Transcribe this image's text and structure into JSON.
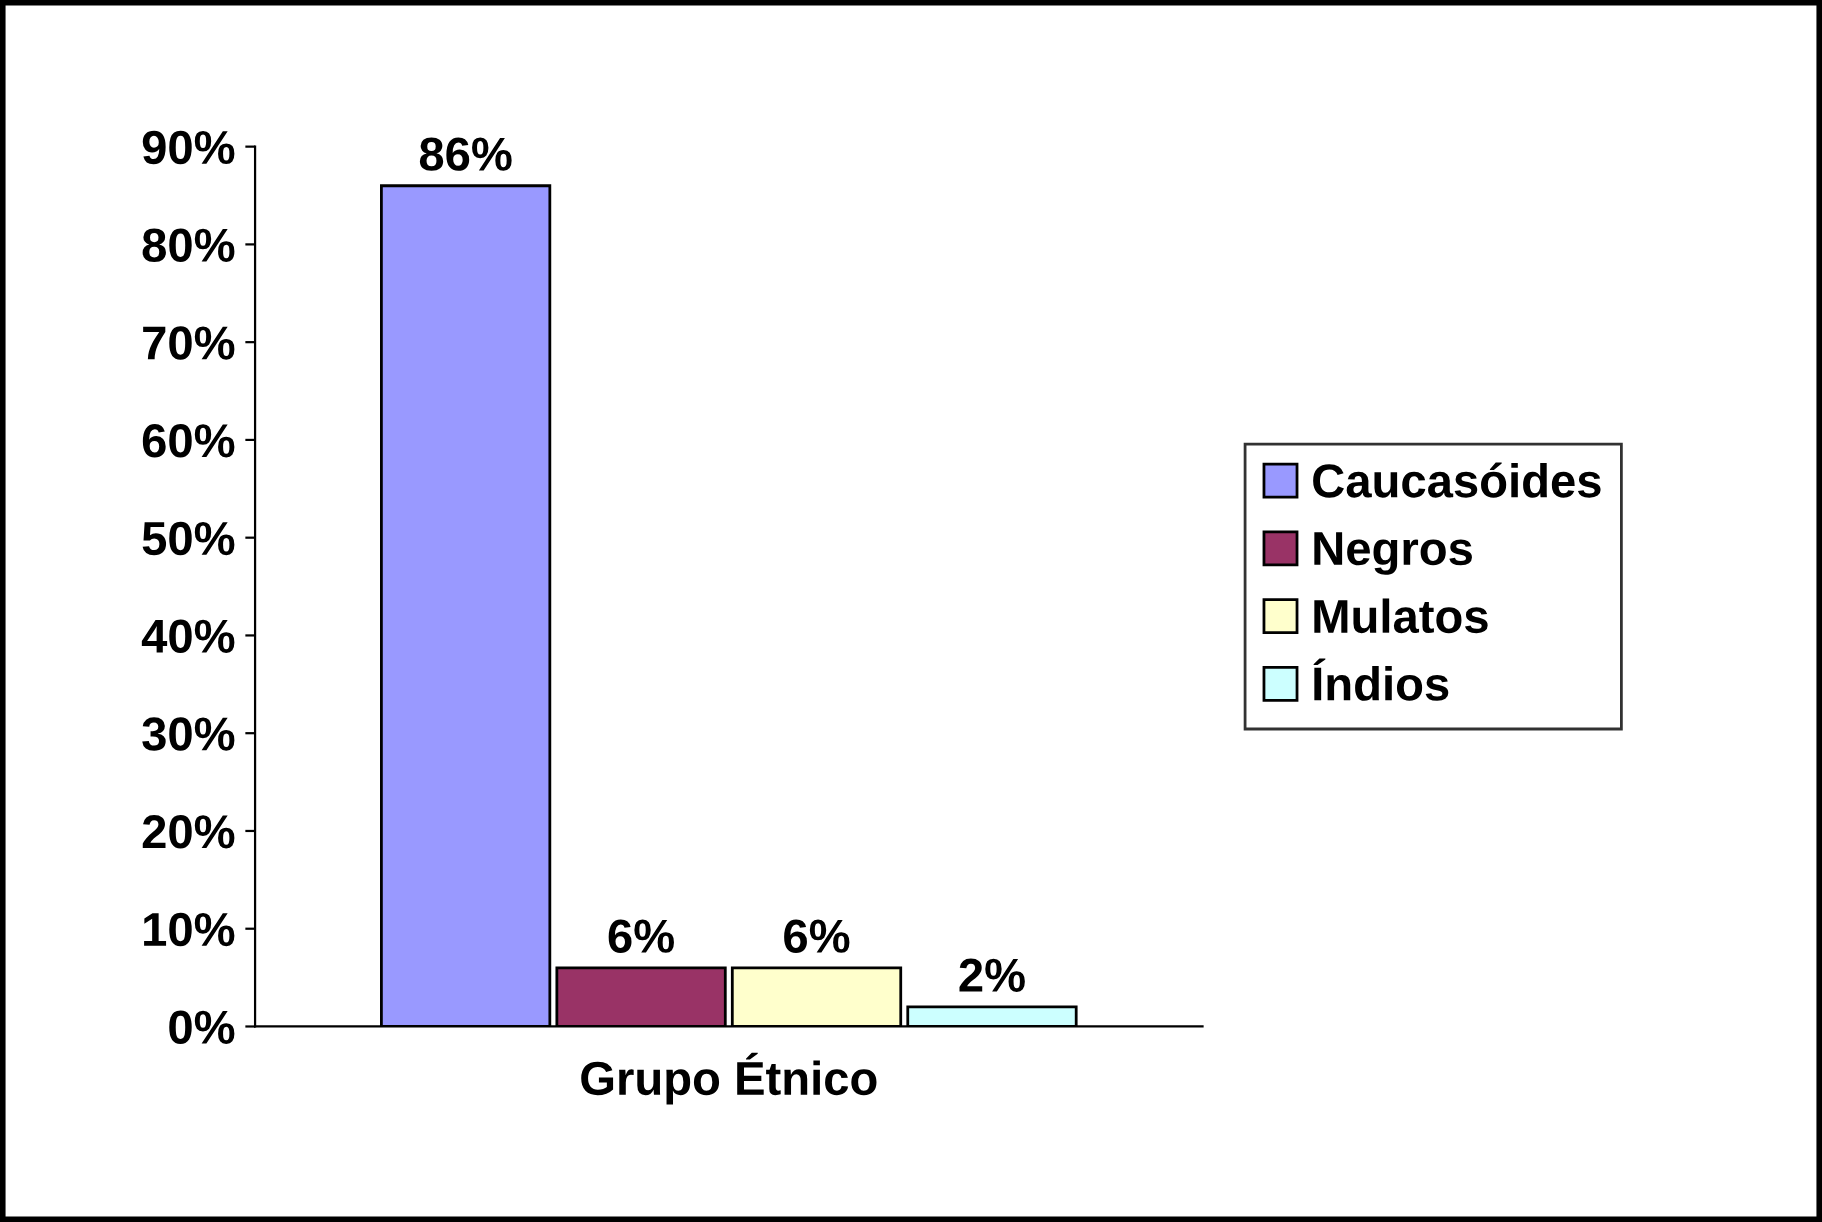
{
  "chart_data": {
    "type": "bar",
    "xlabel": "Grupo Étnico",
    "categories": [
      null,
      null,
      null,
      null
    ],
    "series": [
      {
        "name": "Caucasóides",
        "color": "#9999ff",
        "values": [
          86,
          null,
          null,
          null
        ],
        "value_labels": [
          "86%",
          null,
          null,
          null
        ]
      },
      {
        "name": "Negros",
        "color": "#993366",
        "values": [
          null,
          6,
          null,
          null
        ],
        "value_labels": [
          null,
          "6%",
          null,
          null
        ]
      },
      {
        "name": "Mulatos",
        "color": "#ffffcc",
        "values": [
          null,
          null,
          6,
          null
        ],
        "value_labels": [
          null,
          null,
          "6%",
          null
        ]
      },
      {
        "name": "Índios",
        "color": "#ccffff",
        "values": [
          null,
          null,
          null,
          2
        ],
        "value_labels": [
          null,
          null,
          null,
          "2%"
        ]
      }
    ],
    "ylim": [
      0,
      90
    ],
    "yticks": [
      {
        "value": 0,
        "label": "0%"
      },
      {
        "value": 10,
        "label": "10%"
      },
      {
        "value": 20,
        "label": "20%"
      },
      {
        "value": 30,
        "label": "30%"
      },
      {
        "value": 40,
        "label": "40%"
      },
      {
        "value": 50,
        "label": "50%"
      },
      {
        "value": 60,
        "label": "60%"
      },
      {
        "value": 70,
        "label": "70%"
      },
      {
        "value": 80,
        "label": "80%"
      },
      {
        "value": 90,
        "label": "90%"
      }
    ],
    "grid": false,
    "legend": "right"
  }
}
